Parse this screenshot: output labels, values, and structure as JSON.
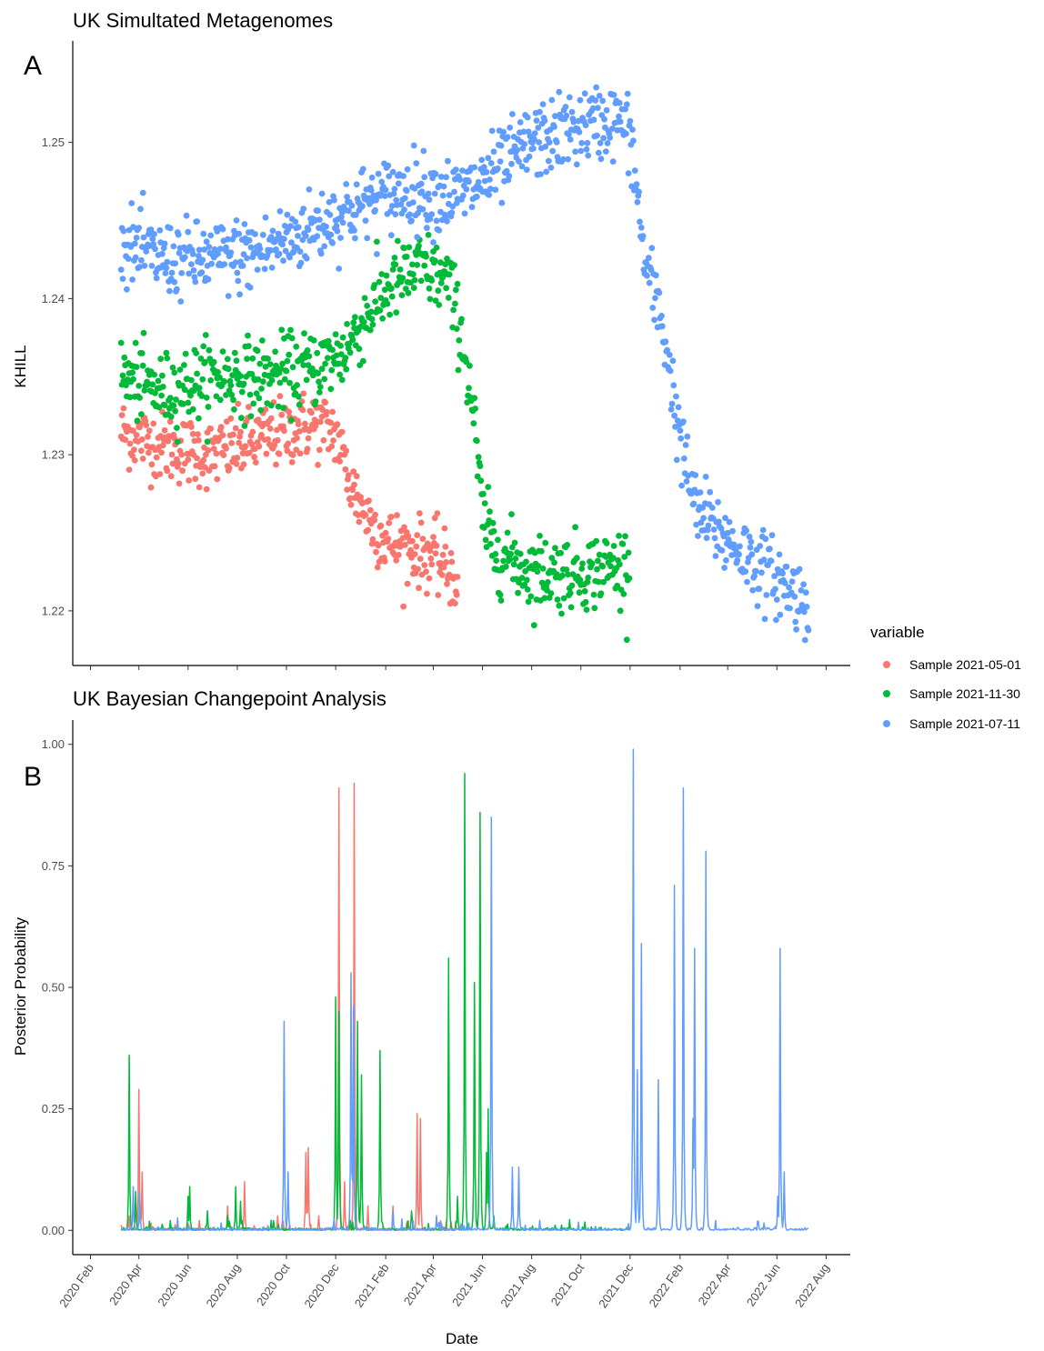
{
  "chart_data": [
    {
      "type": "scatter",
      "panel_label": "A",
      "title": "UK Simultated Metagenomes",
      "xlabel": "",
      "ylabel": "KHILL",
      "x_type": "date",
      "xlim": [
        "2020-01-10",
        "2022-08-31"
      ],
      "ylim": [
        1.2165,
        1.2565
      ],
      "yticks": [
        1.22,
        1.23,
        1.24,
        1.25
      ],
      "ytick_labels": [
        "1.22",
        "1.23",
        "1.24",
        "1.25"
      ],
      "grid": false,
      "series": [
        {
          "name": "Sample 2021-05-01",
          "color": "#F8766D",
          "x_start": "2020-03-10",
          "x_end": "2021-05-01",
          "trend": [
            [
              "2020-03-10",
              1.2315
            ],
            [
              "2020-05-01",
              1.2305
            ],
            [
              "2020-07-01",
              1.23
            ],
            [
              "2020-09-01",
              1.231
            ],
            [
              "2020-11-01",
              1.232
            ],
            [
              "2020-12-01",
              1.2315
            ],
            [
              "2020-12-20",
              1.228
            ],
            [
              "2021-01-10",
              1.226
            ],
            [
              "2021-02-01",
              1.2245
            ],
            [
              "2021-03-01",
              1.224
            ],
            [
              "2021-04-01",
              1.2235
            ],
            [
              "2021-05-01",
              1.222
            ]
          ],
          "spread": 0.0011
        },
        {
          "name": "Sample 2021-11-30",
          "color": "#00BA38",
          "x_start": "2020-03-10",
          "x_end": "2021-11-30",
          "trend": [
            [
              "2020-03-10",
              1.235
            ],
            [
              "2020-05-01",
              1.234
            ],
            [
              "2020-07-01",
              1.235
            ],
            [
              "2020-09-01",
              1.235
            ],
            [
              "2020-11-01",
              1.2355
            ],
            [
              "2020-12-10",
              1.2365
            ],
            [
              "2021-01-10",
              1.239
            ],
            [
              "2021-02-10",
              1.241
            ],
            [
              "2021-03-20",
              1.242
            ],
            [
              "2021-04-20",
              1.241
            ],
            [
              "2021-05-05",
              1.238
            ],
            [
              "2021-05-20",
              1.233
            ],
            [
              "2021-06-01",
              1.226
            ],
            [
              "2021-06-15",
              1.224
            ],
            [
              "2021-08-01",
              1.2225
            ],
            [
              "2021-10-01",
              1.2225
            ],
            [
              "2021-11-30",
              1.223
            ]
          ],
          "spread": 0.0012
        },
        {
          "name": "Sample 2021-07-11",
          "color": "#619CFF",
          "x_start": "2020-03-10",
          "x_end": "2022-07-10",
          "trend": [
            [
              "2020-03-10",
              1.2435
            ],
            [
              "2020-05-01",
              1.2425
            ],
            [
              "2020-07-01",
              1.2425
            ],
            [
              "2020-09-01",
              1.243
            ],
            [
              "2020-11-01",
              1.2445
            ],
            [
              "2021-01-01",
              1.246
            ],
            [
              "2021-03-01",
              1.247
            ],
            [
              "2021-05-01",
              1.2465
            ],
            [
              "2021-06-15",
              1.248
            ],
            [
              "2021-08-01",
              1.25
            ],
            [
              "2021-10-01",
              1.251
            ],
            [
              "2021-11-15",
              1.2515
            ],
            [
              "2021-12-01",
              1.2505
            ],
            [
              "2021-12-20",
              1.242
            ],
            [
              "2022-01-10",
              1.2385
            ],
            [
              "2022-02-01",
              1.231
            ],
            [
              "2022-02-20",
              1.2265
            ],
            [
              "2022-04-01",
              1.2245
            ],
            [
              "2022-05-20",
              1.2225
            ],
            [
              "2022-07-10",
              1.2205
            ]
          ],
          "spread": 0.0012
        }
      ]
    },
    {
      "type": "line",
      "panel_label": "B",
      "title": "UK Bayesian Changepoint Analysis",
      "xlabel": "Date",
      "ylabel": "Posterior Probability",
      "x_type": "date",
      "xlim": [
        "2020-01-10",
        "2022-08-31"
      ],
      "ylim": [
        -0.05,
        1.05
      ],
      "yticks": [
        0,
        0.25,
        0.5,
        0.75,
        1
      ],
      "ytick_labels": [
        "0.00",
        "0.25",
        "0.50",
        "0.75",
        "1.00"
      ],
      "xticks": [
        "2020-02-01",
        "2020-04-01",
        "2020-06-01",
        "2020-08-01",
        "2020-10-01",
        "2020-12-01",
        "2021-02-01",
        "2021-04-01",
        "2021-06-01",
        "2021-08-01",
        "2021-10-01",
        "2021-12-01",
        "2022-02-01",
        "2022-04-01",
        "2022-06-01",
        "2022-08-01"
      ],
      "xtick_labels": [
        "2020 Feb",
        "2020 Apr",
        "2020 Jun",
        "2020 Aug",
        "2020 Oct",
        "2020 Dec",
        "2021 Feb",
        "2021 Apr",
        "2021 Jun",
        "2021 Aug",
        "2021 Oct",
        "2021 Dec",
        "2022 Feb",
        "2022 Apr",
        "2022 Jun",
        "2022 Aug"
      ],
      "grid": false,
      "series": [
        {
          "name": "Sample 2021-05-01",
          "color": "#F8766D",
          "x_start": "2020-03-10",
          "x_end": "2021-05-01",
          "peaks": [
            [
              "2020-03-20",
              0.03
            ],
            [
              "2020-04-01",
              0.29
            ],
            [
              "2020-04-05",
              0.12
            ],
            [
              "2020-06-15",
              0.02
            ],
            [
              "2020-07-20",
              0.05
            ],
            [
              "2020-08-10",
              0.1
            ],
            [
              "2020-09-20",
              0.03
            ],
            [
              "2020-10-25",
              0.16
            ],
            [
              "2020-10-28",
              0.17
            ],
            [
              "2020-11-10",
              0.03
            ],
            [
              "2020-12-05",
              0.91
            ],
            [
              "2020-12-12",
              0.1
            ],
            [
              "2020-12-24",
              0.92
            ],
            [
              "2021-01-10",
              0.05
            ],
            [
              "2021-02-10",
              0.05
            ],
            [
              "2021-03-12",
              0.24
            ],
            [
              "2021-03-16",
              0.23
            ],
            [
              "2021-04-10",
              0.02
            ]
          ]
        },
        {
          "name": "Sample 2021-11-30",
          "color": "#00BA38",
          "x_start": "2020-03-10",
          "x_end": "2021-11-30",
          "peaks": [
            [
              "2020-03-20",
              0.36
            ],
            [
              "2020-03-28",
              0.08
            ],
            [
              "2020-05-10",
              0.02
            ],
            [
              "2020-06-01",
              0.07
            ],
            [
              "2020-06-03",
              0.09
            ],
            [
              "2020-06-25",
              0.04
            ],
            [
              "2020-07-20",
              0.03
            ],
            [
              "2020-07-30",
              0.09
            ],
            [
              "2020-08-05",
              0.06
            ],
            [
              "2020-09-15",
              0.02
            ],
            [
              "2020-12-01",
              0.48
            ],
            [
              "2020-12-05",
              0.45
            ],
            [
              "2020-12-28",
              0.43
            ],
            [
              "2021-01-02",
              0.32
            ],
            [
              "2021-01-25",
              0.37
            ],
            [
              "2021-03-05",
              0.04
            ],
            [
              "2021-04-20",
              0.56
            ],
            [
              "2021-05-01",
              0.07
            ],
            [
              "2021-05-10",
              0.94
            ],
            [
              "2021-05-22",
              0.51
            ],
            [
              "2021-05-29",
              0.86
            ],
            [
              "2021-06-08",
              0.25
            ],
            [
              "2021-06-06",
              0.16
            ],
            [
              "2021-06-15",
              0.03
            ],
            [
              "2021-09-15",
              0.005
            ]
          ]
        },
        {
          "name": "Sample 2021-07-11",
          "color": "#619CFF",
          "x_start": "2020-03-10",
          "x_end": "2022-07-10",
          "peaks": [
            [
              "2020-03-25",
              0.09
            ],
            [
              "2020-04-02",
              0.08
            ],
            [
              "2020-09-28",
              0.43
            ],
            [
              "2020-10-03",
              0.12
            ],
            [
              "2020-12-20",
              0.53
            ],
            [
              "2020-12-23",
              0.46
            ],
            [
              "2021-02-10",
              0.04
            ],
            [
              "2021-04-05",
              0.03
            ],
            [
              "2021-06-12",
              0.85
            ],
            [
              "2021-07-08",
              0.13
            ],
            [
              "2021-07-16",
              0.13
            ],
            [
              "2021-12-05",
              0.99
            ],
            [
              "2021-12-10",
              0.33
            ],
            [
              "2021-12-15",
              0.59
            ],
            [
              "2022-01-05",
              0.31
            ],
            [
              "2022-01-25",
              0.71
            ],
            [
              "2022-02-05",
              0.91
            ],
            [
              "2022-02-17",
              0.23
            ],
            [
              "2022-02-19",
              0.58
            ],
            [
              "2022-03-05",
              0.78
            ],
            [
              "2022-06-02",
              0.07
            ],
            [
              "2022-06-05",
              0.58
            ],
            [
              "2022-06-10",
              0.12
            ]
          ]
        }
      ]
    }
  ],
  "legend": {
    "title": "variable",
    "position": "right",
    "items": [
      {
        "label": "Sample 2021-05-01",
        "color": "#F8766D"
      },
      {
        "label": "Sample 2021-11-30",
        "color": "#00BA38"
      },
      {
        "label": "Sample 2021-07-11",
        "color": "#619CFF"
      }
    ]
  }
}
